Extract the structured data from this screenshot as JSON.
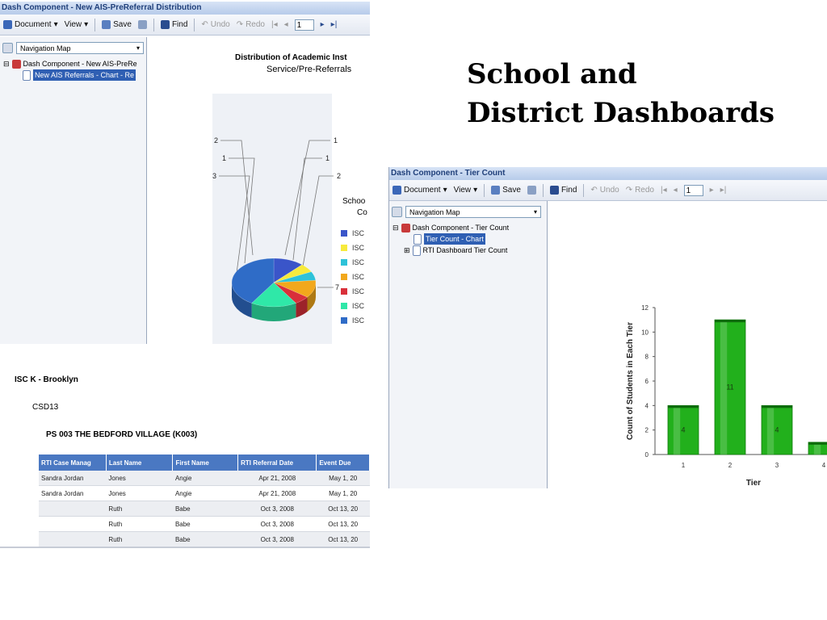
{
  "heading": {
    "line1": "School and",
    "line2": "District Dashboards"
  },
  "window1": {
    "title": "Dash Component - New AIS-PreReferral Distribution",
    "toolbar": {
      "document": "Document",
      "view": "View",
      "save": "Save",
      "find": "Find",
      "undo": "Undo",
      "redo": "Redo",
      "page": "1"
    },
    "nav": {
      "selector": "Navigation Map",
      "tree": [
        "Dash Component - New AIS-PreRe",
        "New AIS Referrals - Chart - Re"
      ]
    },
    "chart_data": {
      "type": "pie",
      "title_line1": "Distribution of Academic Inst",
      "title_line2": "Service/Pre-Referrals",
      "legend_title_line1": "Schoo",
      "legend_title_line2": "Co",
      "categories": [
        "ISC",
        "ISC",
        "ISC",
        "ISC",
        "ISC",
        "ISC",
        "ISC"
      ],
      "colors": [
        "#3a55c9",
        "#f7ea3c",
        "#2ec2d8",
        "#f2a81c",
        "#d9303a",
        "#2fe8a8",
        "#2f6cc7"
      ],
      "slice_values": [
        2,
        1,
        1,
        2,
        1,
        3,
        7
      ],
      "left_labels": [
        "2",
        "1",
        "3"
      ],
      "right_labels": [
        "1",
        "1",
        "2"
      ],
      "bottom_label": "7"
    },
    "report": {
      "region": "ISC K - Brooklyn",
      "district": "CSD13",
      "school": "PS 003 THE BEDFORD VILLAGE (K003)",
      "columns": [
        "RTI Case Manag",
        "Last Name",
        "First Name",
        "RTI Referral Date",
        "Event Due"
      ],
      "rows": [
        [
          "Sandra Jordan",
          "Jones",
          "Angie",
          "Apr 21, 2008",
          "May 1, 20"
        ],
        [
          "Sandra Jordan",
          "Jones",
          "Angie",
          "Apr 21, 2008",
          "May 1, 20"
        ],
        [
          "",
          "Ruth",
          "Babe",
          "Oct 3, 2008",
          "Oct 13, 20"
        ],
        [
          "",
          "Ruth",
          "Babe",
          "Oct 3, 2008",
          "Oct 13, 20"
        ],
        [
          "",
          "Ruth",
          "Babe",
          "Oct 3, 2008",
          "Oct 13, 20"
        ]
      ]
    }
  },
  "window2": {
    "title": "Dash Component - Tier Count",
    "toolbar": {
      "document": "Document",
      "view": "View",
      "save": "Save",
      "find": "Find",
      "undo": "Undo",
      "redo": "Redo",
      "page": "1"
    },
    "nav": {
      "selector": "Navigation Map",
      "tree": [
        "Dash Component - Tier Count",
        "Tier Count - Chart",
        "RTI Dashboard Tier Count"
      ]
    },
    "chart_data": {
      "type": "bar",
      "categories": [
        "1",
        "2",
        "3",
        "4"
      ],
      "values": [
        4,
        11,
        4,
        1
      ],
      "bar_labels": [
        "4",
        "11",
        "4",
        ""
      ],
      "xlabel": "Tier",
      "ylabel": "Count of Students in Each Tier",
      "ylim": [
        0,
        12
      ],
      "yticks": [
        "0",
        "2",
        "4",
        "6",
        "8",
        "10",
        "12"
      ],
      "bar_color": "#22b01c"
    }
  }
}
